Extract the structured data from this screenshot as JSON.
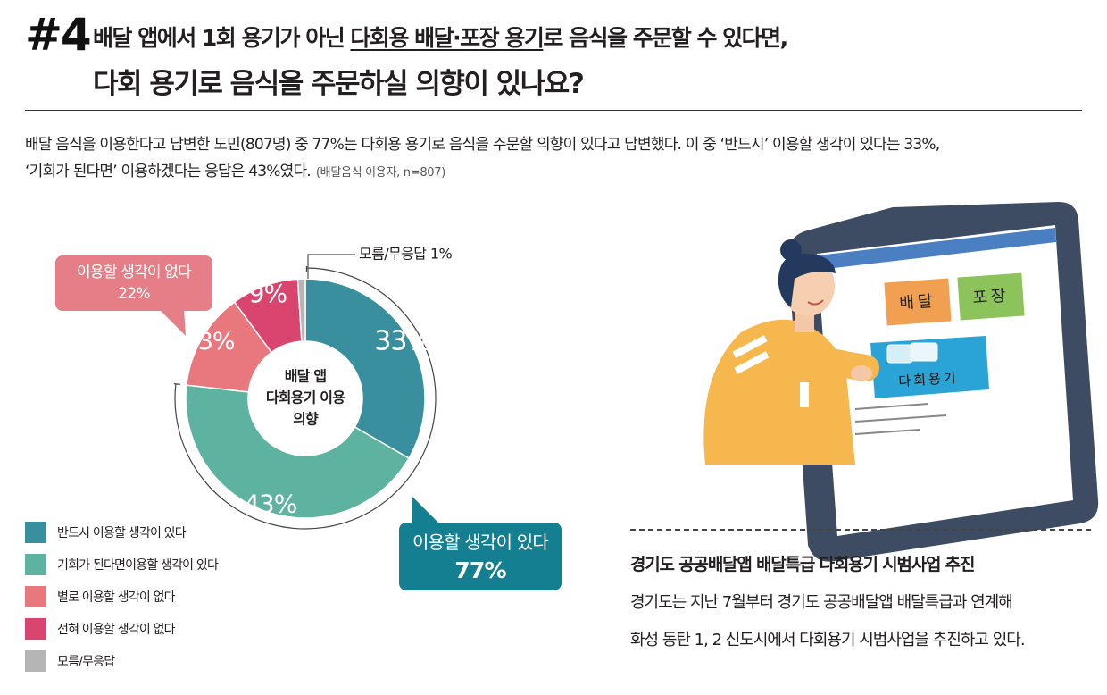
{
  "header": {
    "number": "#4",
    "line1_pre": "배달 앱에서 1회 용기가 아닌 ",
    "line1_underlined": "다회용 배달·포장 용기",
    "line1_post": "로 음식을 주문할 수 있다면,",
    "line2": "다회 용기로 음식을 주문하실 의향이 있나요?"
  },
  "description": {
    "line1": "배달 음식을 이용한다고 답변한 도민(807명) 중 77%는 다회용 용기로 음식을 주문할 의향이 있다고 답변했다. 이 중 ‘반드시’ 이용할 생각이 있다는 33%,",
    "line2": "‘기회가 된다면’ 이용하겠다는 응답은 43%였다.",
    "note": "(배달음식 이용자, n=807)"
  },
  "chart_data": {
    "type": "pie",
    "title": "배달 앱 다회용기 이용 의향",
    "center_label_lines": [
      "배달 앱",
      "다회용기 이용",
      "의향"
    ],
    "slices": [
      {
        "name": "반드시 이용할 생각이 있다",
        "value": 33,
        "label": "33%",
        "color": "#3a8f9e"
      },
      {
        "name": "기회가 된다면이용할 생각이 있다",
        "value": 43,
        "label": "43%",
        "color": "#5db3a0"
      },
      {
        "name": "별로 이용할 생각이 없다",
        "value": 13,
        "label": "13%",
        "color": "#e9787e"
      },
      {
        "name": "전혀 이용할 생각이 없다",
        "value": 9,
        "label": "9%",
        "color": "#d9456e"
      },
      {
        "name": "모름/무응답",
        "value": 1,
        "label": "",
        "color": "#b5b5b5"
      }
    ],
    "callouts": {
      "dk": "모름/무응답 1%",
      "no_title": "이용할 생각이 없다",
      "no_value": "22%",
      "yes_title": "이용할 생각이 있다",
      "yes_value": "77%"
    },
    "legend_placement": "bottom-left"
  },
  "illustration": {
    "tiles": [
      {
        "text": "배달",
        "color": "#f0a050"
      },
      {
        "text": "포장",
        "color": "#8cc35a"
      },
      {
        "text": "다회용기",
        "color": "#2aa3d6"
      }
    ]
  },
  "pilot": {
    "title": "경기도 공공배달앱 배달특급 다회용기 시범사업 추진",
    "body_line1": "경기도는 지난 7월부터 경기도 공공배달앱 배달특급과 연계해",
    "body_line2": "화성 동탄 1, 2 신도시에서 다회용기 시범사업을 추진하고 있다."
  }
}
